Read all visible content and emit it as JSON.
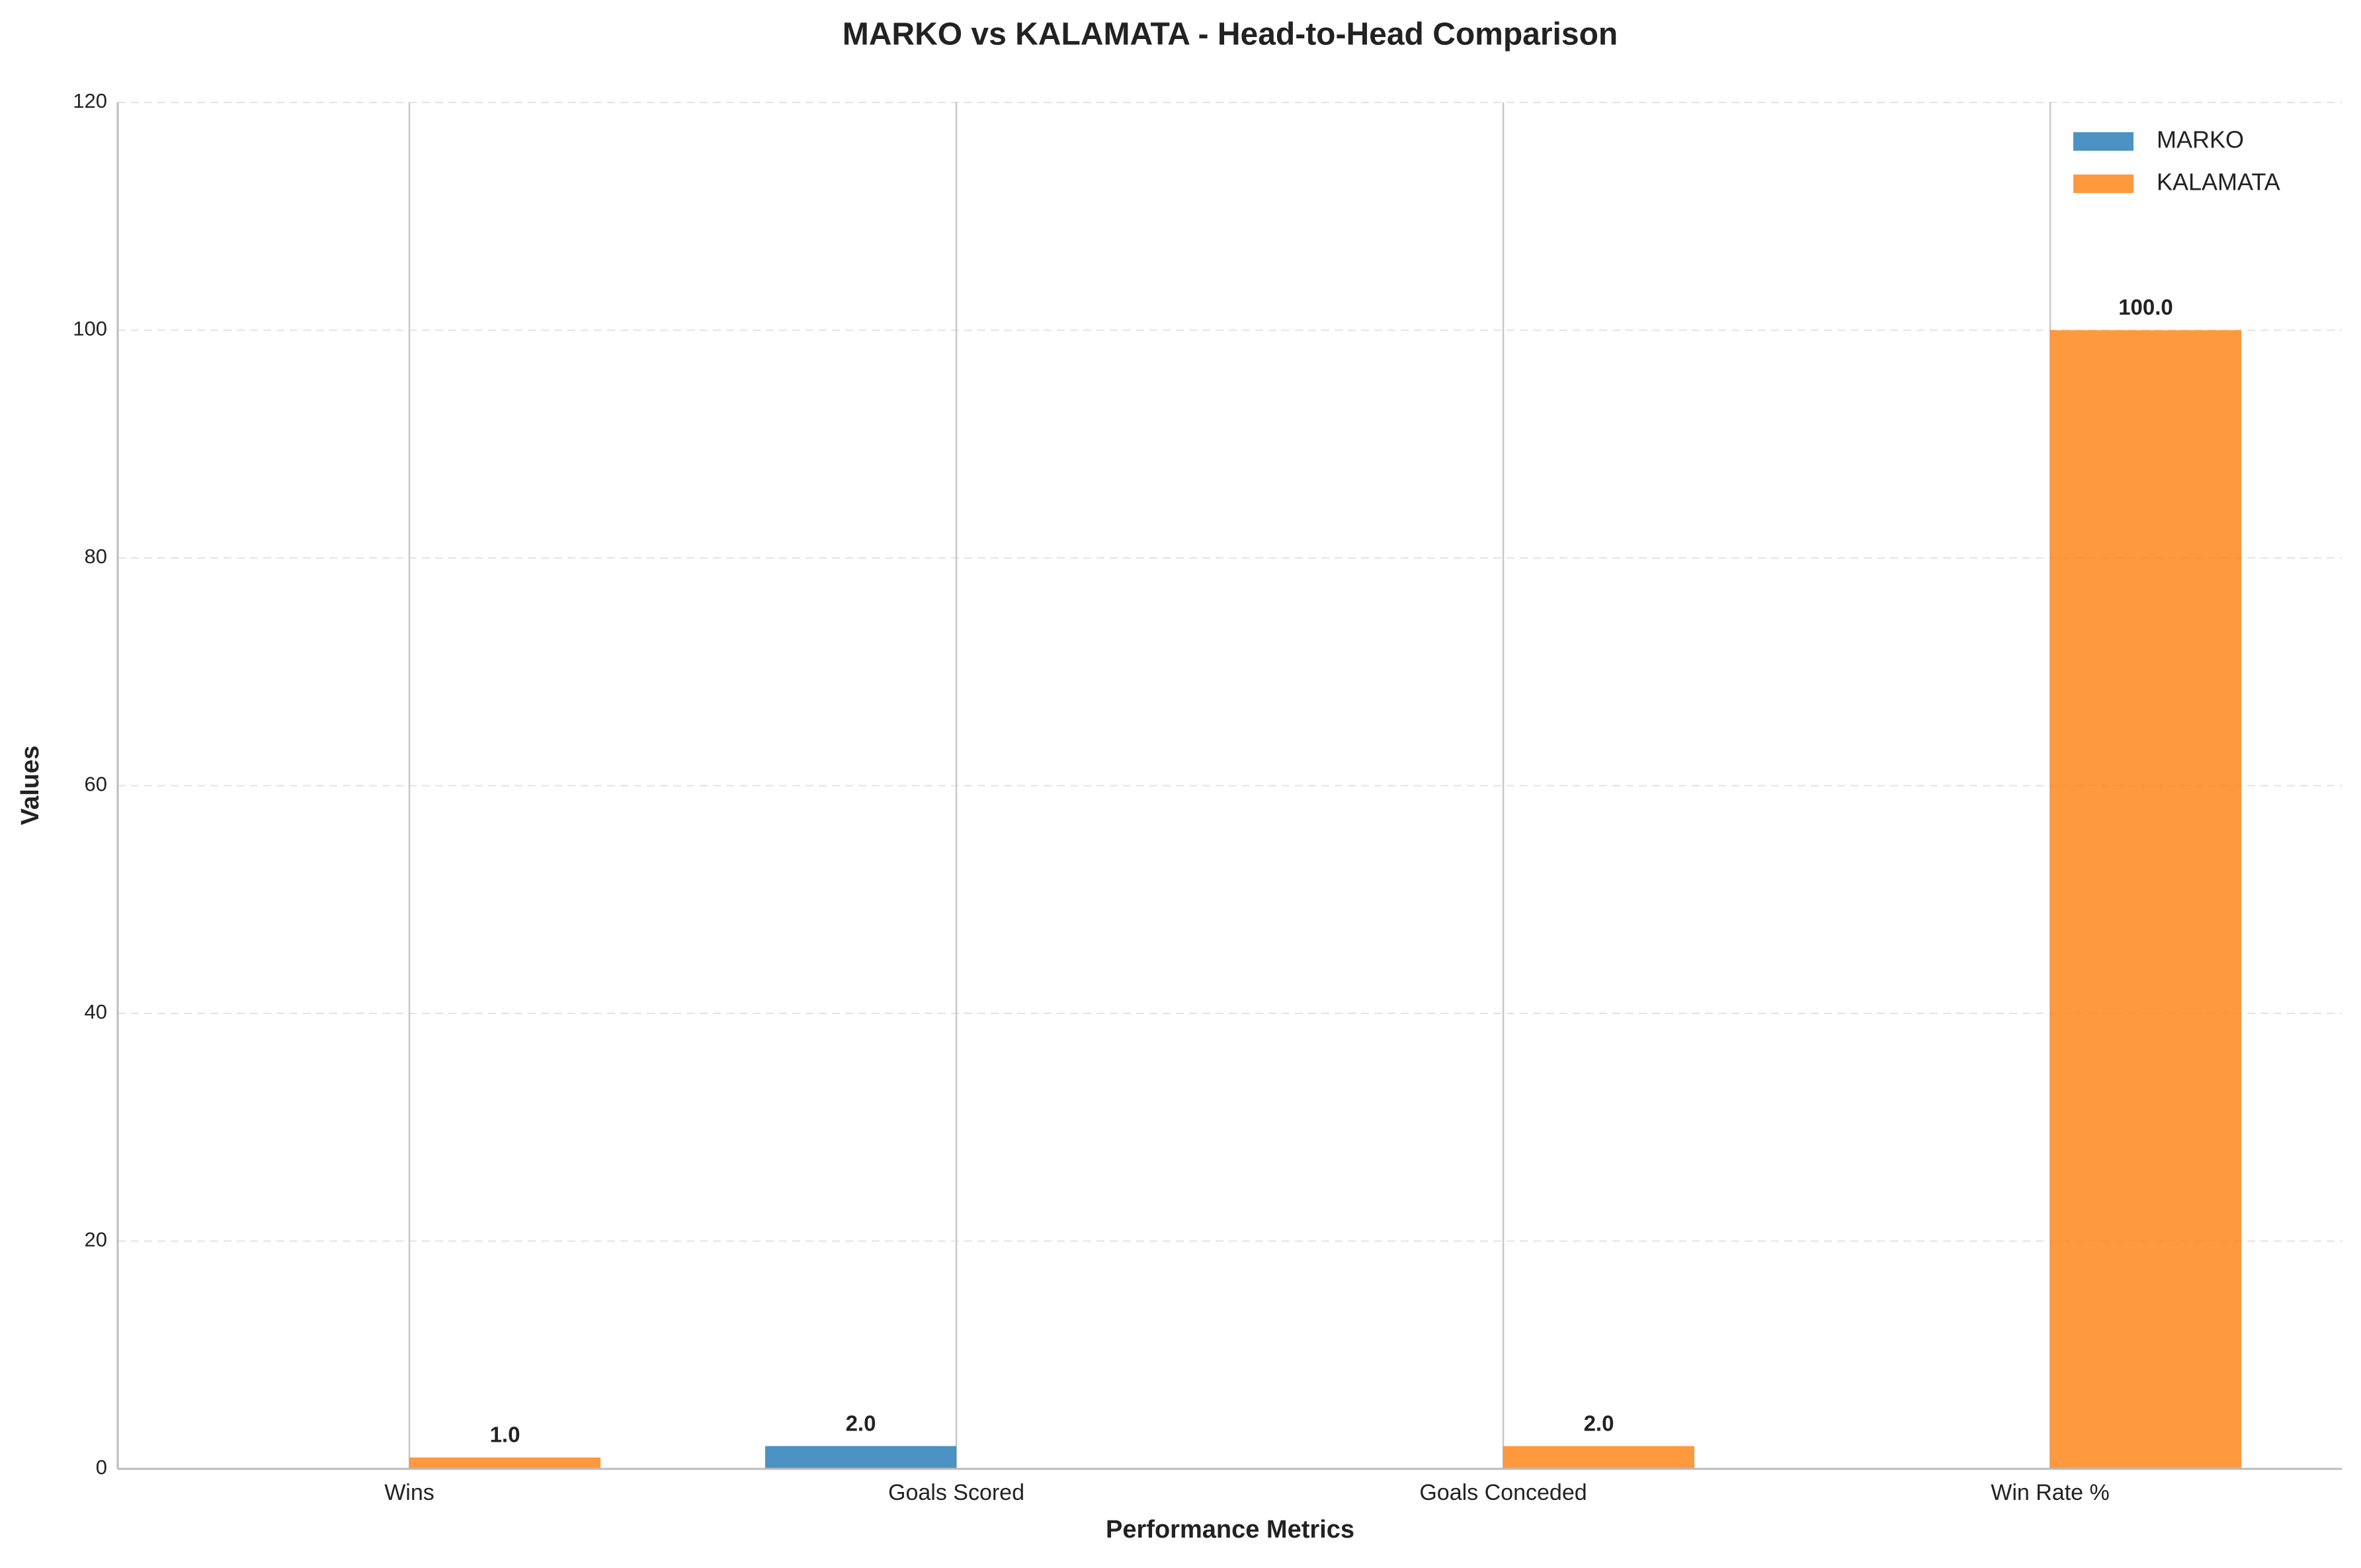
{
  "chart_data": {
    "type": "bar",
    "title": "MARKO vs KALAMATA - Head-to-Head Comparison",
    "x_label": "Performance Metrics",
    "y_label": "Values",
    "categories": [
      "Wins",
      "Goals Scored",
      "Goals Conceded",
      "Win Rate %"
    ],
    "series": [
      {
        "name": "MARKO",
        "color": "#1f77b4",
        "values": [
          0,
          2,
          0,
          0
        ],
        "value_labels": [
          null,
          "2.0",
          null,
          null
        ]
      },
      {
        "name": "KALAMATA",
        "color": "#ff7f0e",
        "values": [
          1,
          0,
          2,
          100
        ],
        "value_labels": [
          "1.0",
          null,
          "2.0",
          "100.0"
        ]
      }
    ],
    "ylim": [
      0,
      120
    ],
    "yticks": [
      0,
      20,
      40,
      60,
      80,
      100,
      120
    ],
    "grid": true,
    "legend": "upper right"
  }
}
